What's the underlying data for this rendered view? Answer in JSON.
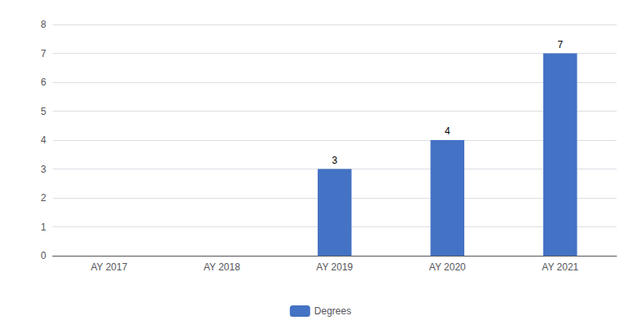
{
  "chart_data": {
    "type": "bar",
    "categories": [
      "AY 2017",
      "AY 2018",
      "AY 2019",
      "AY 2020",
      "AY 2021"
    ],
    "series": [
      {
        "name": "Degrees",
        "color": "#4472C4",
        "values": [
          0,
          0,
          3,
          4,
          7
        ],
        "value_labels": [
          null,
          null,
          "3",
          "4",
          "7"
        ]
      }
    ],
    "ylim": [
      0,
      8
    ],
    "yticks": [
      0,
      1,
      2,
      3,
      4,
      5,
      6,
      7,
      8
    ],
    "grid": true,
    "legend": "bottom",
    "data_labels": true
  }
}
